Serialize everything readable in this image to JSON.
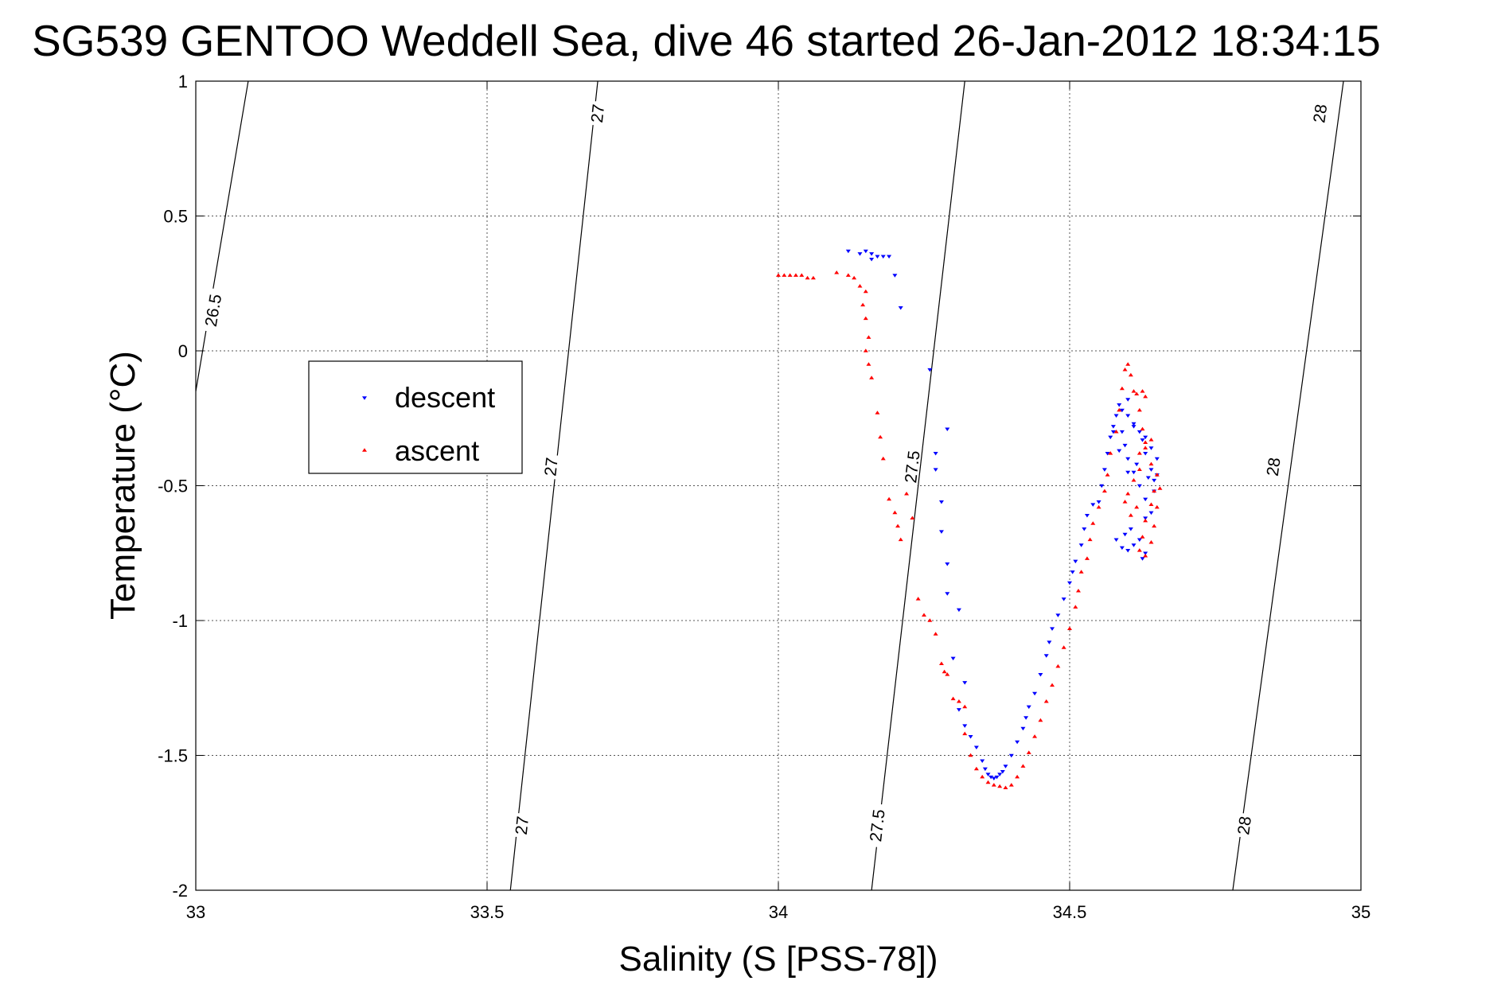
{
  "chart_data": {
    "type": "scatter",
    "title": "SG539 GENTOO Weddell Sea, dive 46 started 26-Jan-2012 18:34:15",
    "xlabel": "Salinity (S [PSS-78])",
    "ylabel": "Temperature (°C)",
    "xlim": [
      33,
      35
    ],
    "ylim": [
      -2,
      1
    ],
    "xticks": [
      33,
      33.5,
      34,
      34.5,
      35
    ],
    "xtick_labels": [
      "33",
      "33.5",
      "34",
      "34.5",
      "35"
    ],
    "yticks": [
      -2,
      -1.5,
      -1,
      -0.5,
      0,
      0.5,
      1
    ],
    "ytick_labels": [
      "-2",
      "-1.5",
      "-1",
      "-0.5",
      "0",
      "0.5",
      "1"
    ],
    "grid": true,
    "legend_position": "left",
    "legend": [
      {
        "label": "descent",
        "color": "#0000ff",
        "marker": "triangle-down"
      },
      {
        "label": "ascent",
        "color": "#ff0000",
        "marker": "triangle-up"
      }
    ],
    "contours": [
      {
        "label": "26.5",
        "points": [
          [
            33.09,
            1.0
          ],
          [
            33.0,
            -0.15
          ]
        ],
        "labels_at": [
          [
            33.03,
            0.15
          ]
        ]
      },
      {
        "label": "27",
        "points": [
          [
            33.69,
            1.0
          ],
          [
            33.54,
            -2.0
          ]
        ],
        "labels_at": [
          [
            33.69,
            0.88
          ],
          [
            33.61,
            -0.43
          ],
          [
            33.56,
            -1.76
          ]
        ]
      },
      {
        "label": "27.5",
        "points": [
          [
            34.32,
            1.0
          ],
          [
            34.16,
            -2.0
          ]
        ],
        "labels_at": [
          [
            34.23,
            -0.43
          ],
          [
            34.17,
            -1.76
          ]
        ]
      },
      {
        "label": "28",
        "points": [
          [
            34.97,
            1.0
          ],
          [
            34.78,
            -2.0
          ]
        ],
        "labels_at": [
          [
            34.93,
            0.88
          ],
          [
            34.85,
            -0.43
          ],
          [
            34.8,
            -1.76
          ]
        ]
      }
    ],
    "series": [
      {
        "name": "descent",
        "color": "#0000ff",
        "marker": "triangle-down",
        "points": [
          [
            34.12,
            0.37
          ],
          [
            34.14,
            0.36
          ],
          [
            34.15,
            0.37
          ],
          [
            34.16,
            0.36
          ],
          [
            34.17,
            0.35
          ],
          [
            34.18,
            0.35
          ],
          [
            34.16,
            0.34
          ],
          [
            34.19,
            0.35
          ],
          [
            34.2,
            0.28
          ],
          [
            34.21,
            0.16
          ],
          [
            34.26,
            -0.07
          ],
          [
            34.29,
            -0.29
          ],
          [
            34.27,
            -0.38
          ],
          [
            34.27,
            -0.44
          ],
          [
            34.28,
            -0.56
          ],
          [
            34.28,
            -0.67
          ],
          [
            34.29,
            -0.79
          ],
          [
            34.29,
            -0.9
          ],
          [
            34.31,
            -0.96
          ],
          [
            34.3,
            -1.14
          ],
          [
            34.32,
            -1.23
          ],
          [
            34.31,
            -1.33
          ],
          [
            34.32,
            -1.39
          ],
          [
            34.33,
            -1.43
          ],
          [
            34.34,
            -1.47
          ],
          [
            34.35,
            -1.52
          ],
          [
            34.355,
            -1.55
          ],
          [
            34.36,
            -1.57
          ],
          [
            34.365,
            -1.58
          ],
          [
            34.37,
            -1.585
          ],
          [
            34.375,
            -1.58
          ],
          [
            34.38,
            -1.57
          ],
          [
            34.385,
            -1.56
          ],
          [
            34.39,
            -1.54
          ],
          [
            34.4,
            -1.5
          ],
          [
            34.41,
            -1.45
          ],
          [
            34.42,
            -1.4
          ],
          [
            34.425,
            -1.36
          ],
          [
            34.43,
            -1.32
          ],
          [
            34.44,
            -1.27
          ],
          [
            34.45,
            -1.2
          ],
          [
            34.46,
            -1.13
          ],
          [
            34.465,
            -1.08
          ],
          [
            34.47,
            -1.03
          ],
          [
            34.48,
            -0.98
          ],
          [
            34.49,
            -0.92
          ],
          [
            34.5,
            -0.86
          ],
          [
            34.505,
            -0.82
          ],
          [
            34.51,
            -0.78
          ],
          [
            34.52,
            -0.72
          ],
          [
            34.525,
            -0.66
          ],
          [
            34.53,
            -0.61
          ],
          [
            34.54,
            -0.57
          ],
          [
            34.55,
            -0.56
          ],
          [
            34.555,
            -0.5
          ],
          [
            34.56,
            -0.44
          ],
          [
            34.565,
            -0.38
          ],
          [
            34.57,
            -0.32
          ],
          [
            34.575,
            -0.28
          ],
          [
            34.58,
            -0.24
          ],
          [
            34.59,
            -0.22
          ],
          [
            34.6,
            -0.24
          ],
          [
            34.61,
            -0.28
          ],
          [
            34.62,
            -0.3
          ],
          [
            34.63,
            -0.32
          ],
          [
            34.64,
            -0.36
          ],
          [
            34.65,
            -0.4
          ],
          [
            34.65,
            -0.46
          ],
          [
            34.645,
            -0.52
          ],
          [
            34.63,
            -0.55
          ],
          [
            34.62,
            -0.5
          ],
          [
            34.61,
            -0.45
          ],
          [
            34.6,
            -0.4
          ],
          [
            34.595,
            -0.35
          ],
          [
            34.59,
            -0.3
          ],
          [
            34.585,
            -0.37
          ],
          [
            34.6,
            -0.45
          ],
          [
            34.615,
            -0.42
          ],
          [
            34.63,
            -0.38
          ],
          [
            34.64,
            -0.44
          ],
          [
            34.645,
            -0.48
          ],
          [
            34.63,
            -0.62
          ],
          [
            34.62,
            -0.7
          ],
          [
            34.61,
            -0.72
          ],
          [
            34.6,
            -0.74
          ],
          [
            34.59,
            -0.73
          ],
          [
            34.58,
            -0.7
          ],
          [
            34.595,
            -0.68
          ],
          [
            34.605,
            -0.66
          ],
          [
            34.63,
            -0.75
          ],
          [
            34.625,
            -0.77
          ],
          [
            34.64,
            -0.6
          ],
          [
            34.635,
            -0.47
          ],
          [
            34.625,
            -0.33
          ],
          [
            34.61,
            -0.27
          ],
          [
            34.6,
            -0.18
          ],
          [
            34.585,
            -0.2
          ],
          [
            34.575,
            -0.3
          ]
        ]
      },
      {
        "name": "ascent",
        "color": "#ff0000",
        "marker": "triangle-up",
        "points": [
          [
            34.0,
            0.28
          ],
          [
            34.01,
            0.28
          ],
          [
            34.02,
            0.28
          ],
          [
            34.03,
            0.28
          ],
          [
            34.04,
            0.28
          ],
          [
            34.05,
            0.27
          ],
          [
            34.06,
            0.27
          ],
          [
            34.1,
            0.29
          ],
          [
            34.12,
            0.28
          ],
          [
            34.13,
            0.27
          ],
          [
            34.14,
            0.24
          ],
          [
            34.15,
            0.22
          ],
          [
            34.145,
            0.17
          ],
          [
            34.15,
            0.12
          ],
          [
            34.155,
            0.05
          ],
          [
            34.15,
            0.0
          ],
          [
            34.155,
            -0.05
          ],
          [
            34.16,
            -0.1
          ],
          [
            34.17,
            -0.23
          ],
          [
            34.175,
            -0.32
          ],
          [
            34.18,
            -0.4
          ],
          [
            34.19,
            -0.55
          ],
          [
            34.2,
            -0.6
          ],
          [
            34.205,
            -0.65
          ],
          [
            34.21,
            -0.7
          ],
          [
            34.22,
            -0.53
          ],
          [
            34.23,
            -0.62
          ],
          [
            34.24,
            -0.92
          ],
          [
            34.25,
            -0.98
          ],
          [
            34.26,
            -1.0
          ],
          [
            34.27,
            -1.05
          ],
          [
            34.28,
            -1.16
          ],
          [
            34.285,
            -1.19
          ],
          [
            34.29,
            -1.2
          ],
          [
            34.3,
            -1.29
          ],
          [
            34.31,
            -1.3
          ],
          [
            34.32,
            -1.32
          ],
          [
            34.32,
            -1.42
          ],
          [
            34.33,
            -1.5
          ],
          [
            34.34,
            -1.55
          ],
          [
            34.35,
            -1.58
          ],
          [
            34.36,
            -1.6
          ],
          [
            34.37,
            -1.61
          ],
          [
            34.38,
            -1.615
          ],
          [
            34.39,
            -1.62
          ],
          [
            34.4,
            -1.61
          ],
          [
            34.41,
            -1.58
          ],
          [
            34.42,
            -1.54
          ],
          [
            34.43,
            -1.49
          ],
          [
            34.44,
            -1.43
          ],
          [
            34.45,
            -1.37
          ],
          [
            34.46,
            -1.3
          ],
          [
            34.47,
            -1.24
          ],
          [
            34.48,
            -1.17
          ],
          [
            34.49,
            -1.1
          ],
          [
            34.5,
            -1.03
          ],
          [
            34.51,
            -0.95
          ],
          [
            34.515,
            -0.89
          ],
          [
            34.52,
            -0.82
          ],
          [
            34.53,
            -0.77
          ],
          [
            34.535,
            -0.7
          ],
          [
            34.54,
            -0.64
          ],
          [
            34.55,
            -0.58
          ],
          [
            34.56,
            -0.52
          ],
          [
            34.565,
            -0.46
          ],
          [
            34.57,
            -0.38
          ],
          [
            34.58,
            -0.3
          ],
          [
            34.585,
            -0.22
          ],
          [
            34.59,
            -0.14
          ],
          [
            34.595,
            -0.07
          ],
          [
            34.6,
            -0.05
          ],
          [
            34.605,
            -0.09
          ],
          [
            34.61,
            -0.15
          ],
          [
            34.62,
            -0.22
          ],
          [
            34.625,
            -0.29
          ],
          [
            34.63,
            -0.36
          ],
          [
            34.64,
            -0.42
          ],
          [
            34.65,
            -0.46
          ],
          [
            34.645,
            -0.52
          ],
          [
            34.64,
            -0.57
          ],
          [
            34.63,
            -0.63
          ],
          [
            34.625,
            -0.69
          ],
          [
            34.62,
            -0.74
          ],
          [
            34.63,
            -0.76
          ],
          [
            34.64,
            -0.71
          ],
          [
            34.645,
            -0.65
          ],
          [
            34.65,
            -0.58
          ],
          [
            34.655,
            -0.51
          ],
          [
            34.62,
            -0.44
          ],
          [
            34.61,
            -0.48
          ],
          [
            34.6,
            -0.53
          ],
          [
            34.595,
            -0.56
          ],
          [
            34.605,
            -0.61
          ],
          [
            34.615,
            -0.58
          ],
          [
            34.62,
            -0.38
          ],
          [
            34.63,
            -0.34
          ],
          [
            34.64,
            -0.33
          ],
          [
            34.615,
            -0.16
          ],
          [
            34.625,
            -0.15
          ],
          [
            34.63,
            -0.17
          ]
        ]
      }
    ]
  }
}
